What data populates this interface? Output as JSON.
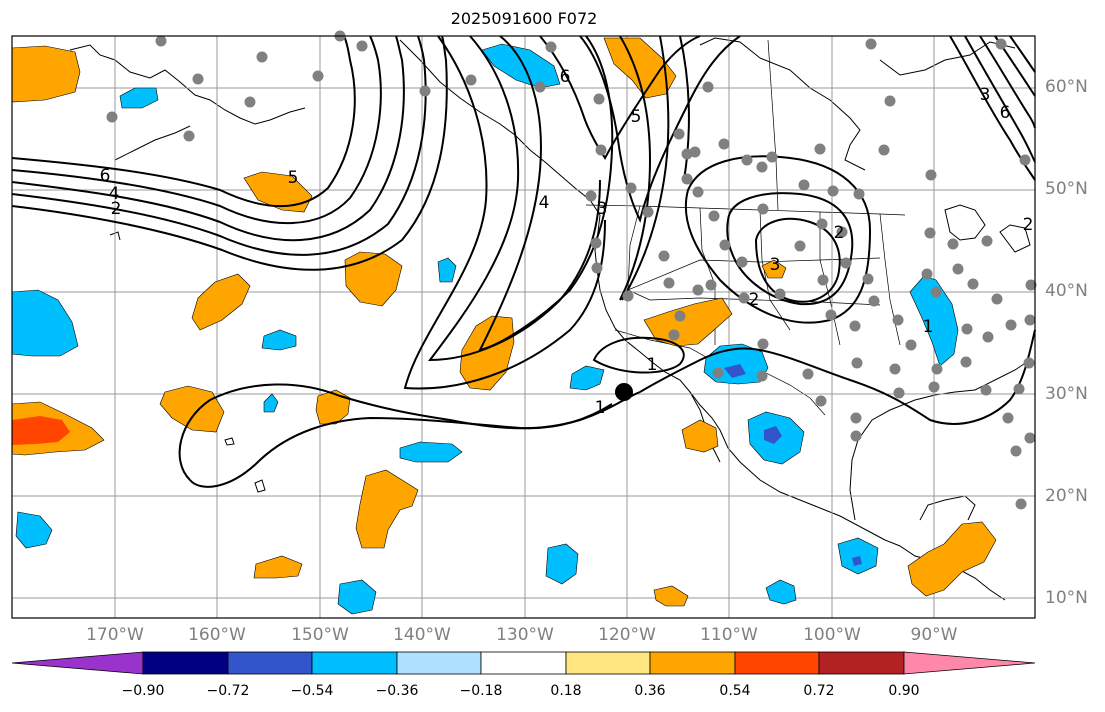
{
  "title": "2025091600 F072",
  "lon_labels": [
    "170°W",
    "160°W",
    "150°W",
    "140°W",
    "130°W",
    "120°W",
    "110°W",
    "100°W",
    "90°W"
  ],
  "lat_labels": [
    "60°N",
    "50°N",
    "40°N",
    "30°N",
    "20°N",
    "10°N"
  ],
  "colorbar": {
    "ticks": [
      "−0.90",
      "−0.72",
      "−0.54",
      "−0.36",
      "−0.18",
      "0.18",
      "0.36",
      "0.54",
      "0.72",
      "0.90"
    ],
    "colors": [
      "#9933cc",
      "#000080",
      "#3355cc",
      "#00bfff",
      "#b0e0ff",
      "#ffffff",
      "#ffe680",
      "#ffa500",
      "#ff4500",
      "#b22222",
      "#ff88aa"
    ]
  },
  "contour_labels": [
    "6",
    "4",
    "2",
    "6",
    "5",
    "4",
    "3",
    "2",
    "1",
    "1",
    "2",
    "3",
    "1",
    "2",
    "3",
    "5",
    "6"
  ],
  "colors": {
    "orange": "#ffa500",
    "orange_red": "#ff4500",
    "sky_blue": "#00bfff",
    "medium_blue": "#3355cc",
    "grid": "#999999",
    "station": "#808080",
    "contour": "#000000"
  },
  "icons": {
    "stations": "gray-dot",
    "point_marker": "black-dot"
  }
}
